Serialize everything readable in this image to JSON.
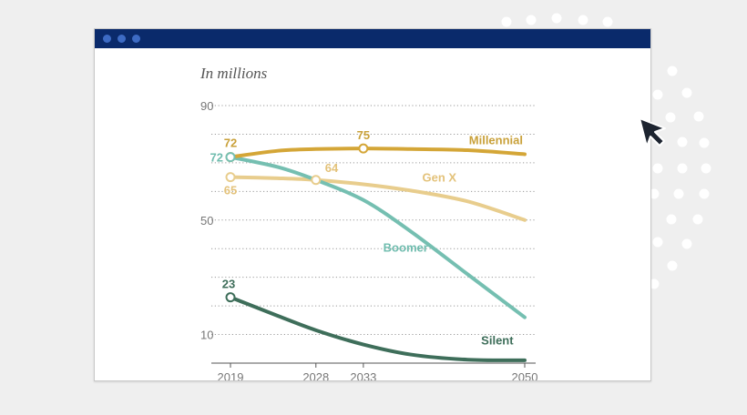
{
  "window": {
    "titlebar_color": "#0a2a6b",
    "dot_color": "#3d6bc4"
  },
  "cursor": {
    "icon": "arrow-cursor-icon",
    "color": "#1d2430"
  },
  "chart_data": {
    "type": "line",
    "subtitle": "In millions",
    "x": [
      2019,
      2028,
      2033,
      2050
    ],
    "xlim": [
      2019,
      2050
    ],
    "ylim": [
      0,
      90
    ],
    "y_ticks": [
      90,
      50,
      10
    ],
    "x_ticks": [
      2019,
      2028,
      2033,
      2050
    ],
    "grid": true,
    "series": [
      {
        "name": "Millennial",
        "color": "#d4a637",
        "points": [
          [
            2019,
            72
          ],
          [
            2024,
            74.2
          ],
          [
            2028,
            74.8
          ],
          [
            2033,
            75
          ],
          [
            2038,
            74.8
          ],
          [
            2044,
            74.4
          ],
          [
            2050,
            73
          ]
        ],
        "markers": [
          {
            "x": 2019,
            "y": 72,
            "label": "72",
            "label_color": "#c9a13a"
          },
          {
            "x": 2033,
            "y": 75,
            "label": "75",
            "label_color": "#c9a13a"
          }
        ]
      },
      {
        "name": "Gen X",
        "color": "#e8cd8d",
        "points": [
          [
            2019,
            65
          ],
          [
            2024,
            64.6
          ],
          [
            2028,
            64
          ],
          [
            2033,
            62.5
          ],
          [
            2038,
            60.3
          ],
          [
            2044,
            56.5
          ],
          [
            2050,
            50
          ]
        ],
        "markers": [
          {
            "x": 2019,
            "y": 65,
            "label": "65",
            "label_color": "#e3c27a"
          },
          {
            "x": 2028,
            "y": 64,
            "label": "64",
            "label_color": "#e3c27a"
          }
        ]
      },
      {
        "name": "Boomer",
        "color": "#75bfb1",
        "points": [
          [
            2019,
            72
          ],
          [
            2024,
            68.5
          ],
          [
            2028,
            64
          ],
          [
            2033,
            57
          ],
          [
            2038,
            46
          ],
          [
            2044,
            31
          ],
          [
            2050,
            16
          ]
        ],
        "markers": [
          {
            "x": 2019,
            "y": 72,
            "label": "72",
            "label_color": "#6fbcae"
          }
        ]
      },
      {
        "name": "Silent",
        "color": "#3e6e5a",
        "points": [
          [
            2019,
            23
          ],
          [
            2024,
            16.5
          ],
          [
            2028,
            11.5
          ],
          [
            2033,
            6.5
          ],
          [
            2038,
            3
          ],
          [
            2044,
            1.2
          ],
          [
            2050,
            1
          ]
        ],
        "markers": [
          {
            "x": 2019,
            "y": 23,
            "label": "23",
            "label_color": "#3e6e5a"
          }
        ]
      }
    ]
  }
}
